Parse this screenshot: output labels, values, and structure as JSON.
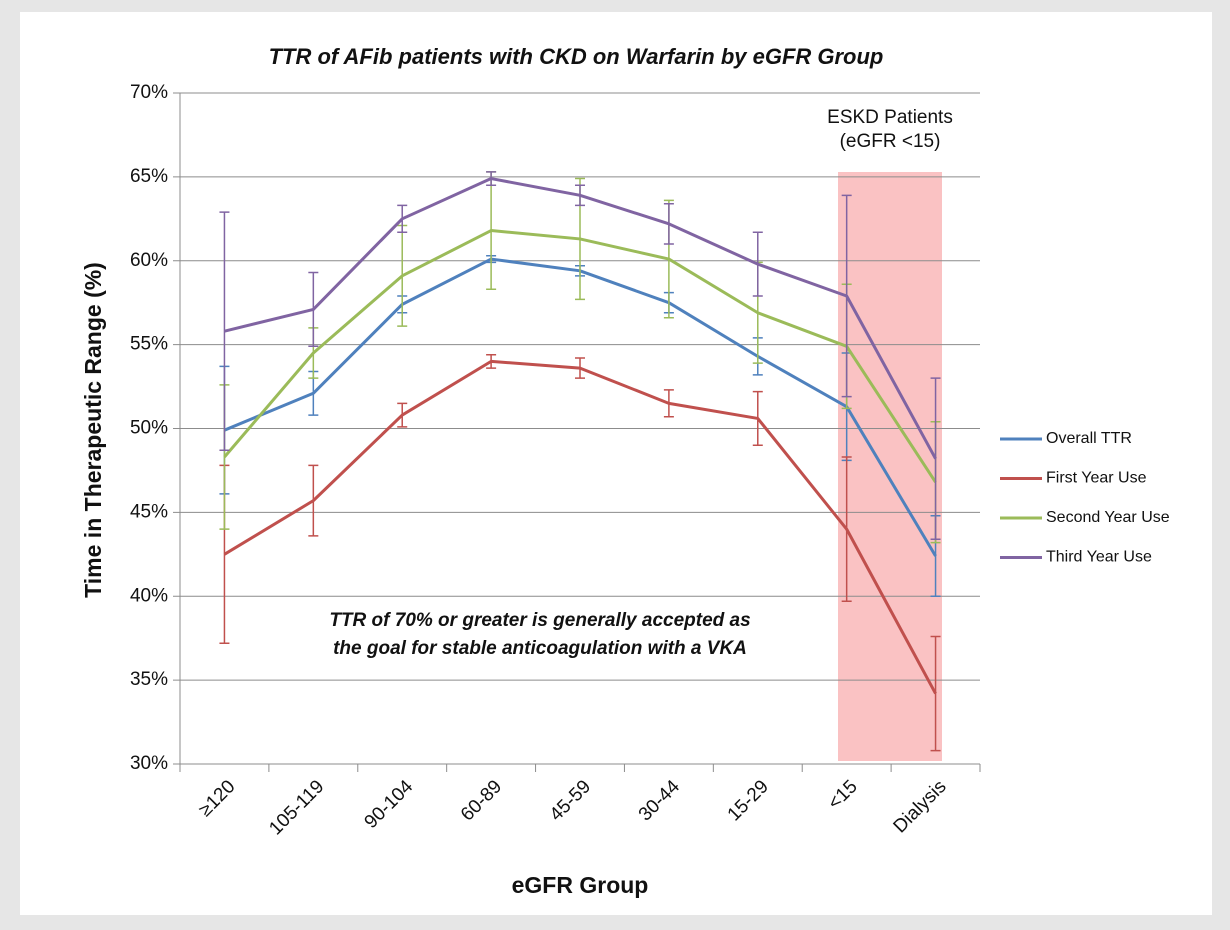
{
  "chart_data": {
    "type": "line",
    "title": "TTR of AFib patients with CKD on Warfarin by eGFR Group",
    "xlabel": "eGFR Group",
    "ylabel": "Time in Therapeutic Range (%)",
    "categories": [
      "≥120",
      "105-119",
      "90-104",
      "60-89",
      "45-59",
      "30-44",
      "15-29",
      "<15",
      "Dialysis"
    ],
    "ylim": [
      30,
      70
    ],
    "yticks": [
      {
        "value": 30,
        "label": "30%"
      },
      {
        "value": 35,
        "label": "35%"
      },
      {
        "value": 40,
        "label": "40%"
      },
      {
        "value": 45,
        "label": "45%"
      },
      {
        "value": 50,
        "label": "50%"
      },
      {
        "value": 55,
        "label": "55%"
      },
      {
        "value": 60,
        "label": "60%"
      },
      {
        "value": 65,
        "label": "65%"
      },
      {
        "value": 70,
        "label": "70%"
      }
    ],
    "grid": true,
    "legend": "right",
    "series": [
      {
        "name": "Overall TTR",
        "color": "#4f81bd",
        "values": [
          49.9,
          52.1,
          57.4,
          60.1,
          59.4,
          57.5,
          54.3,
          51.3,
          42.4
        ],
        "errors": [
          3.8,
          1.3,
          0.5,
          0.2,
          0.3,
          0.6,
          1.1,
          3.2,
          2.4
        ]
      },
      {
        "name": "First Year Use",
        "color": "#c0504d",
        "values": [
          42.5,
          45.7,
          50.8,
          54.0,
          53.6,
          51.5,
          50.6,
          44.0,
          34.2
        ],
        "errors": [
          5.3,
          2.1,
          0.7,
          0.4,
          0.6,
          0.8,
          1.6,
          4.3,
          3.4
        ]
      },
      {
        "name": "Second Year Use",
        "color": "#9bbb59",
        "values": [
          48.3,
          54.5,
          59.1,
          61.8,
          61.3,
          60.1,
          56.9,
          54.9,
          46.8
        ],
        "errors": [
          4.3,
          1.5,
          3.0,
          3.5,
          3.6,
          3.5,
          3.0,
          3.7,
          3.6
        ]
      },
      {
        "name": "Third Year Use",
        "color": "#8064a2",
        "values": [
          55.8,
          57.1,
          62.5,
          64.9,
          63.9,
          62.2,
          59.8,
          57.9,
          48.2
        ],
        "errors": [
          7.1,
          2.2,
          0.8,
          0.4,
          0.6,
          1.2,
          1.9,
          6.0,
          4.8
        ]
      }
    ],
    "annotations": [
      "ESKD Patients",
      "(eGFR <15)"
    ],
    "note": [
      "TTR of 70% or greater is generally accepted as",
      "the goal for stable anticoagulation with a VKA"
    ]
  }
}
